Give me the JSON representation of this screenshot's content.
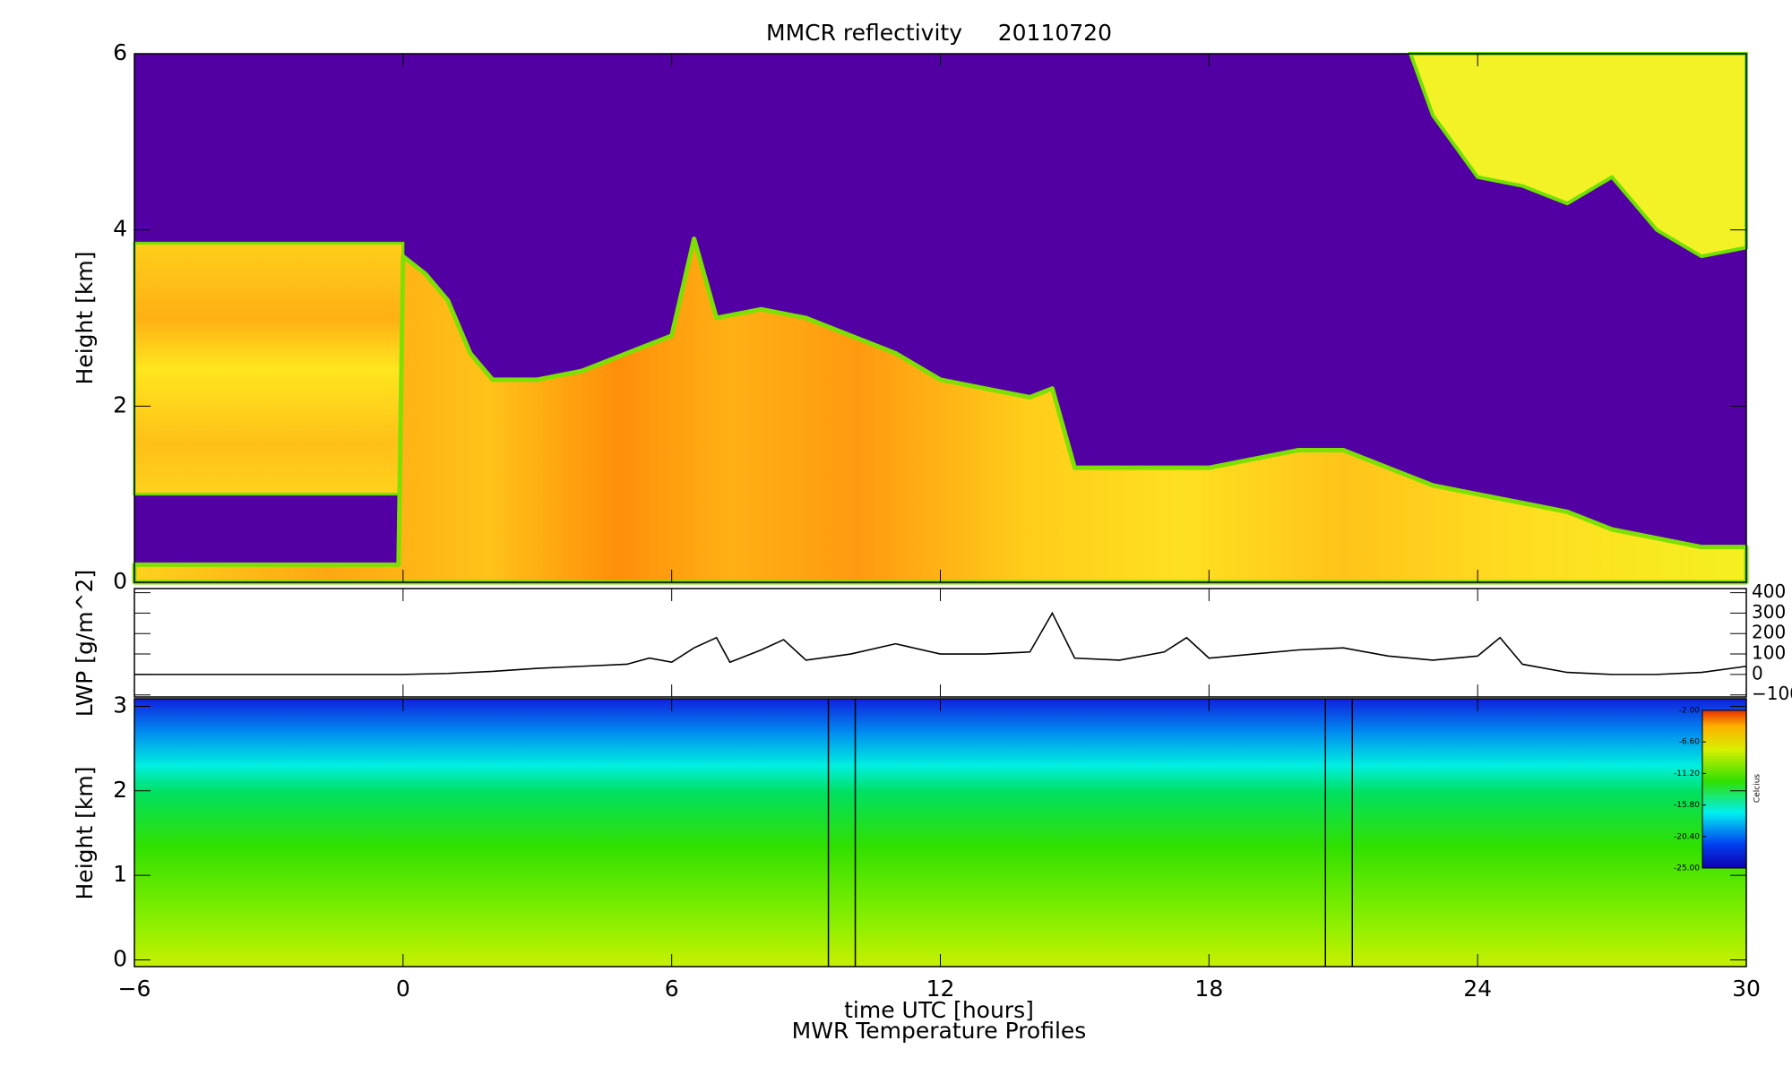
{
  "chart_data": [
    {
      "type": "heatmap",
      "title": "MMCR reflectivity     20110720",
      "ylabel": "Height [km]",
      "xlim": [
        -6,
        30
      ],
      "xticks": [
        -6,
        0,
        6,
        12,
        18,
        24,
        30
      ],
      "ylim": [
        0,
        6
      ],
      "yticks": [
        0,
        2,
        4,
        6
      ],
      "background": "#5200a3",
      "residual_layer": {
        "x": [
          -6,
          0
        ],
        "base": [
          1.0,
          1.0
        ],
        "top": [
          3.85,
          3.85
        ]
      },
      "low_cloud": {
        "x": [
          -6,
          -0.1,
          0,
          0.5,
          1,
          1.5,
          2,
          3,
          4,
          5,
          6,
          6.5,
          7,
          8,
          9,
          10,
          11,
          12,
          13,
          14,
          14.5,
          15,
          16,
          17,
          18,
          19,
          20,
          21,
          22,
          23,
          24,
          25,
          26,
          27,
          28,
          29,
          30
        ],
        "top": [
          0.2,
          0.2,
          3.7,
          3.5,
          3.2,
          2.6,
          2.3,
          2.3,
          2.4,
          2.6,
          2.8,
          3.9,
          3.0,
          3.1,
          3.0,
          2.8,
          2.6,
          2.3,
          2.2,
          2.1,
          2.2,
          1.3,
          1.3,
          1.3,
          1.3,
          1.4,
          1.5,
          1.5,
          1.3,
          1.1,
          1.0,
          0.9,
          0.8,
          0.6,
          0.5,
          0.4,
          0.4
        ]
      },
      "upper_cloud": {
        "x": [
          22.5,
          23,
          24,
          25,
          26,
          27,
          28,
          29,
          30
        ],
        "base": [
          6,
          5.3,
          4.6,
          4.5,
          4.3,
          4.6,
          4.0,
          3.7,
          3.8
        ]
      }
    },
    {
      "type": "line",
      "ylabel": "LWP [g/m^2]",
      "xlim": [
        -6,
        30
      ],
      "xticks": [
        -6,
        0,
        6,
        12,
        18,
        24,
        30
      ],
      "ylim": [
        -110,
        420
      ],
      "yticks": [
        {
          "value": -100,
          "label": "−100"
        },
        0,
        100,
        200,
        300,
        400
      ],
      "color": "#000000",
      "x": [
        -6,
        -3,
        0,
        1,
        2,
        3,
        4,
        5,
        5.5,
        6,
        6.5,
        7,
        7.3,
        8,
        8.5,
        9,
        10,
        11,
        12,
        13,
        14,
        14.5,
        15,
        16,
        17,
        17.5,
        18,
        19,
        20,
        21,
        22,
        23,
        24,
        24.5,
        25,
        26,
        27,
        28,
        29,
        30
      ],
      "values": [
        0,
        0,
        0,
        5,
        15,
        30,
        40,
        50,
        80,
        60,
        130,
        180,
        60,
        120,
        170,
        70,
        100,
        150,
        100,
        100,
        110,
        300,
        80,
        70,
        110,
        180,
        80,
        100,
        120,
        130,
        90,
        70,
        90,
        180,
        50,
        10,
        0,
        0,
        10,
        40
      ]
    },
    {
      "type": "heatmap",
      "ylabel": "Height [km]",
      "xlabel": "time UTC [hours]",
      "subtitle": "MWR Temperature Profiles",
      "xlim": [
        -6,
        30
      ],
      "xticks": [
        {
          "value": -6,
          "label": "−6"
        },
        0,
        6,
        12,
        18,
        24,
        30
      ],
      "ylim": [
        -0.08,
        3.09
      ],
      "yticks": [
        0,
        1,
        2,
        3
      ],
      "gaps": [
        [
          9.5,
          10.1
        ],
        [
          20.6,
          21.2
        ]
      ],
      "colorbar": {
        "label": "Celcius",
        "lim": [
          -25,
          -2
        ],
        "ticks": [
          {
            "value": -2,
            "label": "-2.00"
          },
          {
            "value": -6.6,
            "label": "-6.60"
          },
          {
            "value": -11.2,
            "label": "-11.20"
          },
          {
            "value": -15.8,
            "label": "-15.80"
          },
          {
            "value": -20.4,
            "label": "-20.40"
          },
          {
            "value": -25,
            "label": "-25.00"
          }
        ]
      }
    }
  ]
}
